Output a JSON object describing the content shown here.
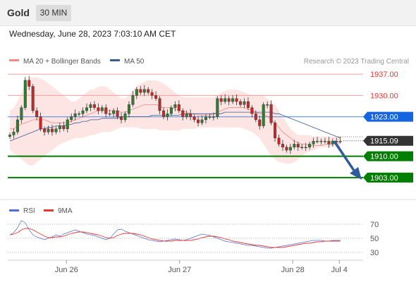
{
  "header": {
    "symbol": "Gold",
    "timeframe": "30 MIN",
    "timestamp": "Wednesday, June 28, 2023 7:03:10 AM CET"
  },
  "chart_data": {
    "type": "candlestick",
    "price_panel": {
      "legend": [
        {
          "name": "MA 20 + Bollinger Bands",
          "color": "#f28b82"
        },
        {
          "name": "MA 50",
          "color": "#3a5a93"
        }
      ],
      "copyright": "Research © 2023 Trading Central",
      "ylim": [
        1896,
        1941
      ],
      "levels": [
        {
          "label": "1937.00",
          "value": 1937.0,
          "kind": "resistance",
          "color": "#e53935"
        },
        {
          "label": "1930.00",
          "value": 1930.0,
          "kind": "resistance",
          "color": "#e53935"
        },
        {
          "label": "1923.00",
          "value": 1923.0,
          "kind": "pivot",
          "color": "#1565e0"
        },
        {
          "label": "1915.09",
          "value": 1915.09,
          "kind": "last",
          "color": "#333333"
        },
        {
          "label": "1910.00",
          "value": 1910.0,
          "kind": "support",
          "color": "#007e00"
        },
        {
          "label": "1903.00",
          "value": 1903.0,
          "kind": "support",
          "color": "#007e00"
        }
      ],
      "arrow": {
        "from": [
          0.985,
          1915.0
        ],
        "to": [
          1.09,
          1903.0
        ],
        "color": "#2f5b9c"
      },
      "close": [
        1917,
        1918,
        1922,
        1926,
        1935,
        1933,
        1925,
        1923,
        1919,
        1918,
        1919,
        1918,
        1919,
        1920,
        1919,
        1922,
        1923,
        1924,
        1924,
        1925,
        1926,
        1927,
        1926,
        1925,
        1926,
        1924,
        1924,
        1925,
        1923,
        1922,
        1924,
        1927,
        1930,
        1932,
        1931,
        1932,
        1931,
        1930,
        1929,
        1925,
        1923,
        1924,
        1926,
        1927,
        1925,
        1923,
        1924,
        1923,
        1922,
        1921,
        1922,
        1923,
        1923,
        1923,
        1929,
        1928,
        1929,
        1928,
        1929,
        1928,
        1927,
        1928,
        1926,
        1924,
        1922,
        1920,
        1927,
        1927,
        1921,
        1916,
        1914,
        1913,
        1912,
        1913,
        1914,
        1913,
        1913,
        1913,
        1914,
        1915,
        1915,
        1915,
        1915,
        1914,
        1915,
        1915,
        1915
      ],
      "ma20": [
        1919,
        1919,
        1920,
        1920.5,
        1921,
        1921.5,
        1922,
        1922,
        1922,
        1922,
        1921.5,
        1921,
        1921,
        1921,
        1921,
        1921,
        1921.5,
        1922,
        1922.5,
        1923,
        1923.5,
        1924,
        1924.5,
        1925,
        1925,
        1925,
        1925,
        1925,
        1925,
        1924.5,
        1924.5,
        1925,
        1925.5,
        1926,
        1926.5,
        1927,
        1927,
        1927,
        1927,
        1926.5,
        1926,
        1926,
        1926,
        1925.5,
        1925,
        1925,
        1924.5,
        1924,
        1924,
        1923.5,
        1923.5,
        1923.5,
        1923.5,
        1924,
        1924.5,
        1925,
        1925.5,
        1926,
        1926,
        1926,
        1926,
        1926,
        1925.5,
        1925,
        1924.5,
        1924,
        1924,
        1923,
        1922,
        1921,
        1919.5,
        1918,
        1917,
        1916,
        1915,
        1914.5,
        1914,
        1914,
        1913.5,
        1913.5,
        1913.5,
        1913.5,
        1914,
        1914,
        1914,
        1914.5,
        1914.5
      ],
      "bb_upper": [
        1925,
        1926,
        1928,
        1931,
        1934,
        1936,
        1936,
        1936,
        1935.5,
        1935,
        1934,
        1933,
        1932,
        1931,
        1930,
        1929,
        1928,
        1928,
        1929,
        1930,
        1931,
        1932,
        1932,
        1933,
        1933,
        1933,
        1932,
        1931,
        1930,
        1929,
        1929,
        1930,
        1932,
        1933,
        1934,
        1934.5,
        1935,
        1935,
        1935,
        1934.5,
        1934,
        1933,
        1932,
        1931,
        1930,
        1929.5,
        1929.5,
        1929.5,
        1929.5,
        1929.5,
        1929.5,
        1929.5,
        1929.5,
        1929.5,
        1930,
        1931,
        1931.5,
        1932,
        1932,
        1932,
        1931.5,
        1931,
        1930.5,
        1930,
        1930,
        1930,
        1930,
        1929,
        1928,
        1927,
        1925,
        1923,
        1921,
        1919,
        1918,
        1917,
        1917,
        1917,
        1917,
        1916.5,
        1916.5,
        1916.5,
        1916.5,
        1916.5,
        1916.5,
        1916.5,
        1916.5
      ],
      "bb_lower": [
        1912,
        1911,
        1910,
        1909,
        1908,
        1907,
        1907,
        1908,
        1909,
        1910,
        1911,
        1912,
        1913,
        1914,
        1914.5,
        1915,
        1915.5,
        1916,
        1916,
        1916,
        1916.5,
        1917,
        1917,
        1917.5,
        1918,
        1918,
        1918,
        1918.5,
        1919,
        1919.5,
        1919.5,
        1919.5,
        1919.5,
        1919.5,
        1919,
        1919,
        1919,
        1919,
        1919,
        1918.5,
        1918.5,
        1918.5,
        1918.5,
        1918.5,
        1918.5,
        1919,
        1919,
        1919,
        1919,
        1919.5,
        1919.5,
        1919.5,
        1919.5,
        1919.5,
        1919.5,
        1919.5,
        1919.5,
        1919.5,
        1919.5,
        1919.5,
        1919.5,
        1919,
        1918.5,
        1918,
        1917,
        1916,
        1914,
        1912,
        1910,
        1909,
        1908,
        1908,
        1907.5,
        1907.5,
        1908,
        1909,
        1910,
        1911,
        1911.5,
        1912,
        1912.5,
        1913,
        1913,
        1913,
        1913,
        1913,
        1913
      ],
      "ma50": [
        1915,
        1915.5,
        1916,
        1916.5,
        1917,
        1917.5,
        1918,
        1918.5,
        1919,
        1919,
        1919.5,
        1919.5,
        1920,
        1920,
        1920,
        1920.5,
        1920.5,
        1921,
        1921,
        1921.5,
        1921.5,
        1922,
        1922,
        1922,
        1922.5,
        1922.5,
        1922.5,
        1922.5,
        1922.5,
        1923,
        1923,
        1923,
        1923,
        1923,
        1923,
        1923,
        1923,
        1923.5,
        1923.5,
        1923.5,
        1923.5,
        1923.5,
        1923.5,
        1923.5,
        1923.5,
        1924,
        1924,
        1924,
        1924,
        1924,
        1924,
        1924,
        1924,
        1924,
        1924,
        1924,
        1924.5,
        1924.5,
        1924.5,
        1924.5,
        1924.5,
        1924.5,
        1924.5,
        1924.5,
        1924.5,
        1924.5,
        1924.5,
        1924.5,
        1924.5,
        1924,
        1924,
        1923.5,
        1923,
        1922.5,
        1922,
        1921.5,
        1921,
        1920.5,
        1920,
        1919.5,
        1919,
        1918.5,
        1918,
        1917.5,
        1917,
        1916.5,
        1916
      ]
    },
    "rsi_panel": {
      "legend": [
        {
          "name": "RSI",
          "color": "#4f6fd8"
        },
        {
          "name": "9MA",
          "color": "#e53935"
        }
      ],
      "ylim": [
        20,
        80
      ],
      "levels": [
        {
          "label": "70",
          "value": 70
        },
        {
          "label": "50",
          "value": 50
        },
        {
          "label": "30",
          "value": 30
        }
      ],
      "rsi": [
        55,
        58,
        65,
        75,
        72,
        62,
        55,
        52,
        50,
        48,
        50,
        52,
        55,
        53,
        56,
        58,
        60,
        62,
        60,
        58,
        56,
        55,
        54,
        52,
        50,
        48,
        50,
        56,
        62,
        63,
        60,
        58,
        56,
        54,
        52,
        50,
        48,
        47,
        46,
        45,
        46,
        47,
        48,
        49,
        48,
        47,
        48,
        50,
        52,
        54,
        56,
        55,
        54,
        52,
        50,
        48,
        46,
        45,
        44,
        43,
        42,
        41,
        40,
        40,
        39,
        38,
        37,
        36,
        36,
        37,
        38,
        39,
        40,
        41,
        42,
        43,
        44,
        45,
        46,
        47,
        47,
        47,
        46,
        46,
        47,
        47,
        47
      ],
      "ma9": [
        55,
        56,
        58,
        62,
        64,
        64,
        62,
        59,
        56,
        53,
        51,
        51,
        52,
        52,
        53,
        55,
        57,
        58,
        59,
        59,
        58,
        57,
        56,
        55,
        53,
        51,
        50,
        51,
        54,
        56,
        57,
        57,
        57,
        56,
        55,
        53,
        51,
        49,
        48,
        47,
        46,
        46,
        46,
        47,
        47,
        47,
        47,
        47,
        48,
        49,
        51,
        52,
        53,
        53,
        52,
        51,
        49,
        48,
        46,
        45,
        44,
        43,
        42,
        41,
        40,
        40,
        39,
        38,
        37,
        37,
        37,
        37,
        38,
        39,
        40,
        41,
        42,
        43,
        43,
        44,
        45,
        45,
        46,
        46,
        46,
        46,
        46
      ]
    },
    "x_axis": {
      "ticks": [
        {
          "label": "Jun 26",
          "index": 17
        },
        {
          "label": "Jun 27",
          "index": 51
        },
        {
          "label": "Jun 28",
          "index": 85
        },
        {
          "label": "Jul 4",
          "index": 99
        }
      ]
    }
  }
}
